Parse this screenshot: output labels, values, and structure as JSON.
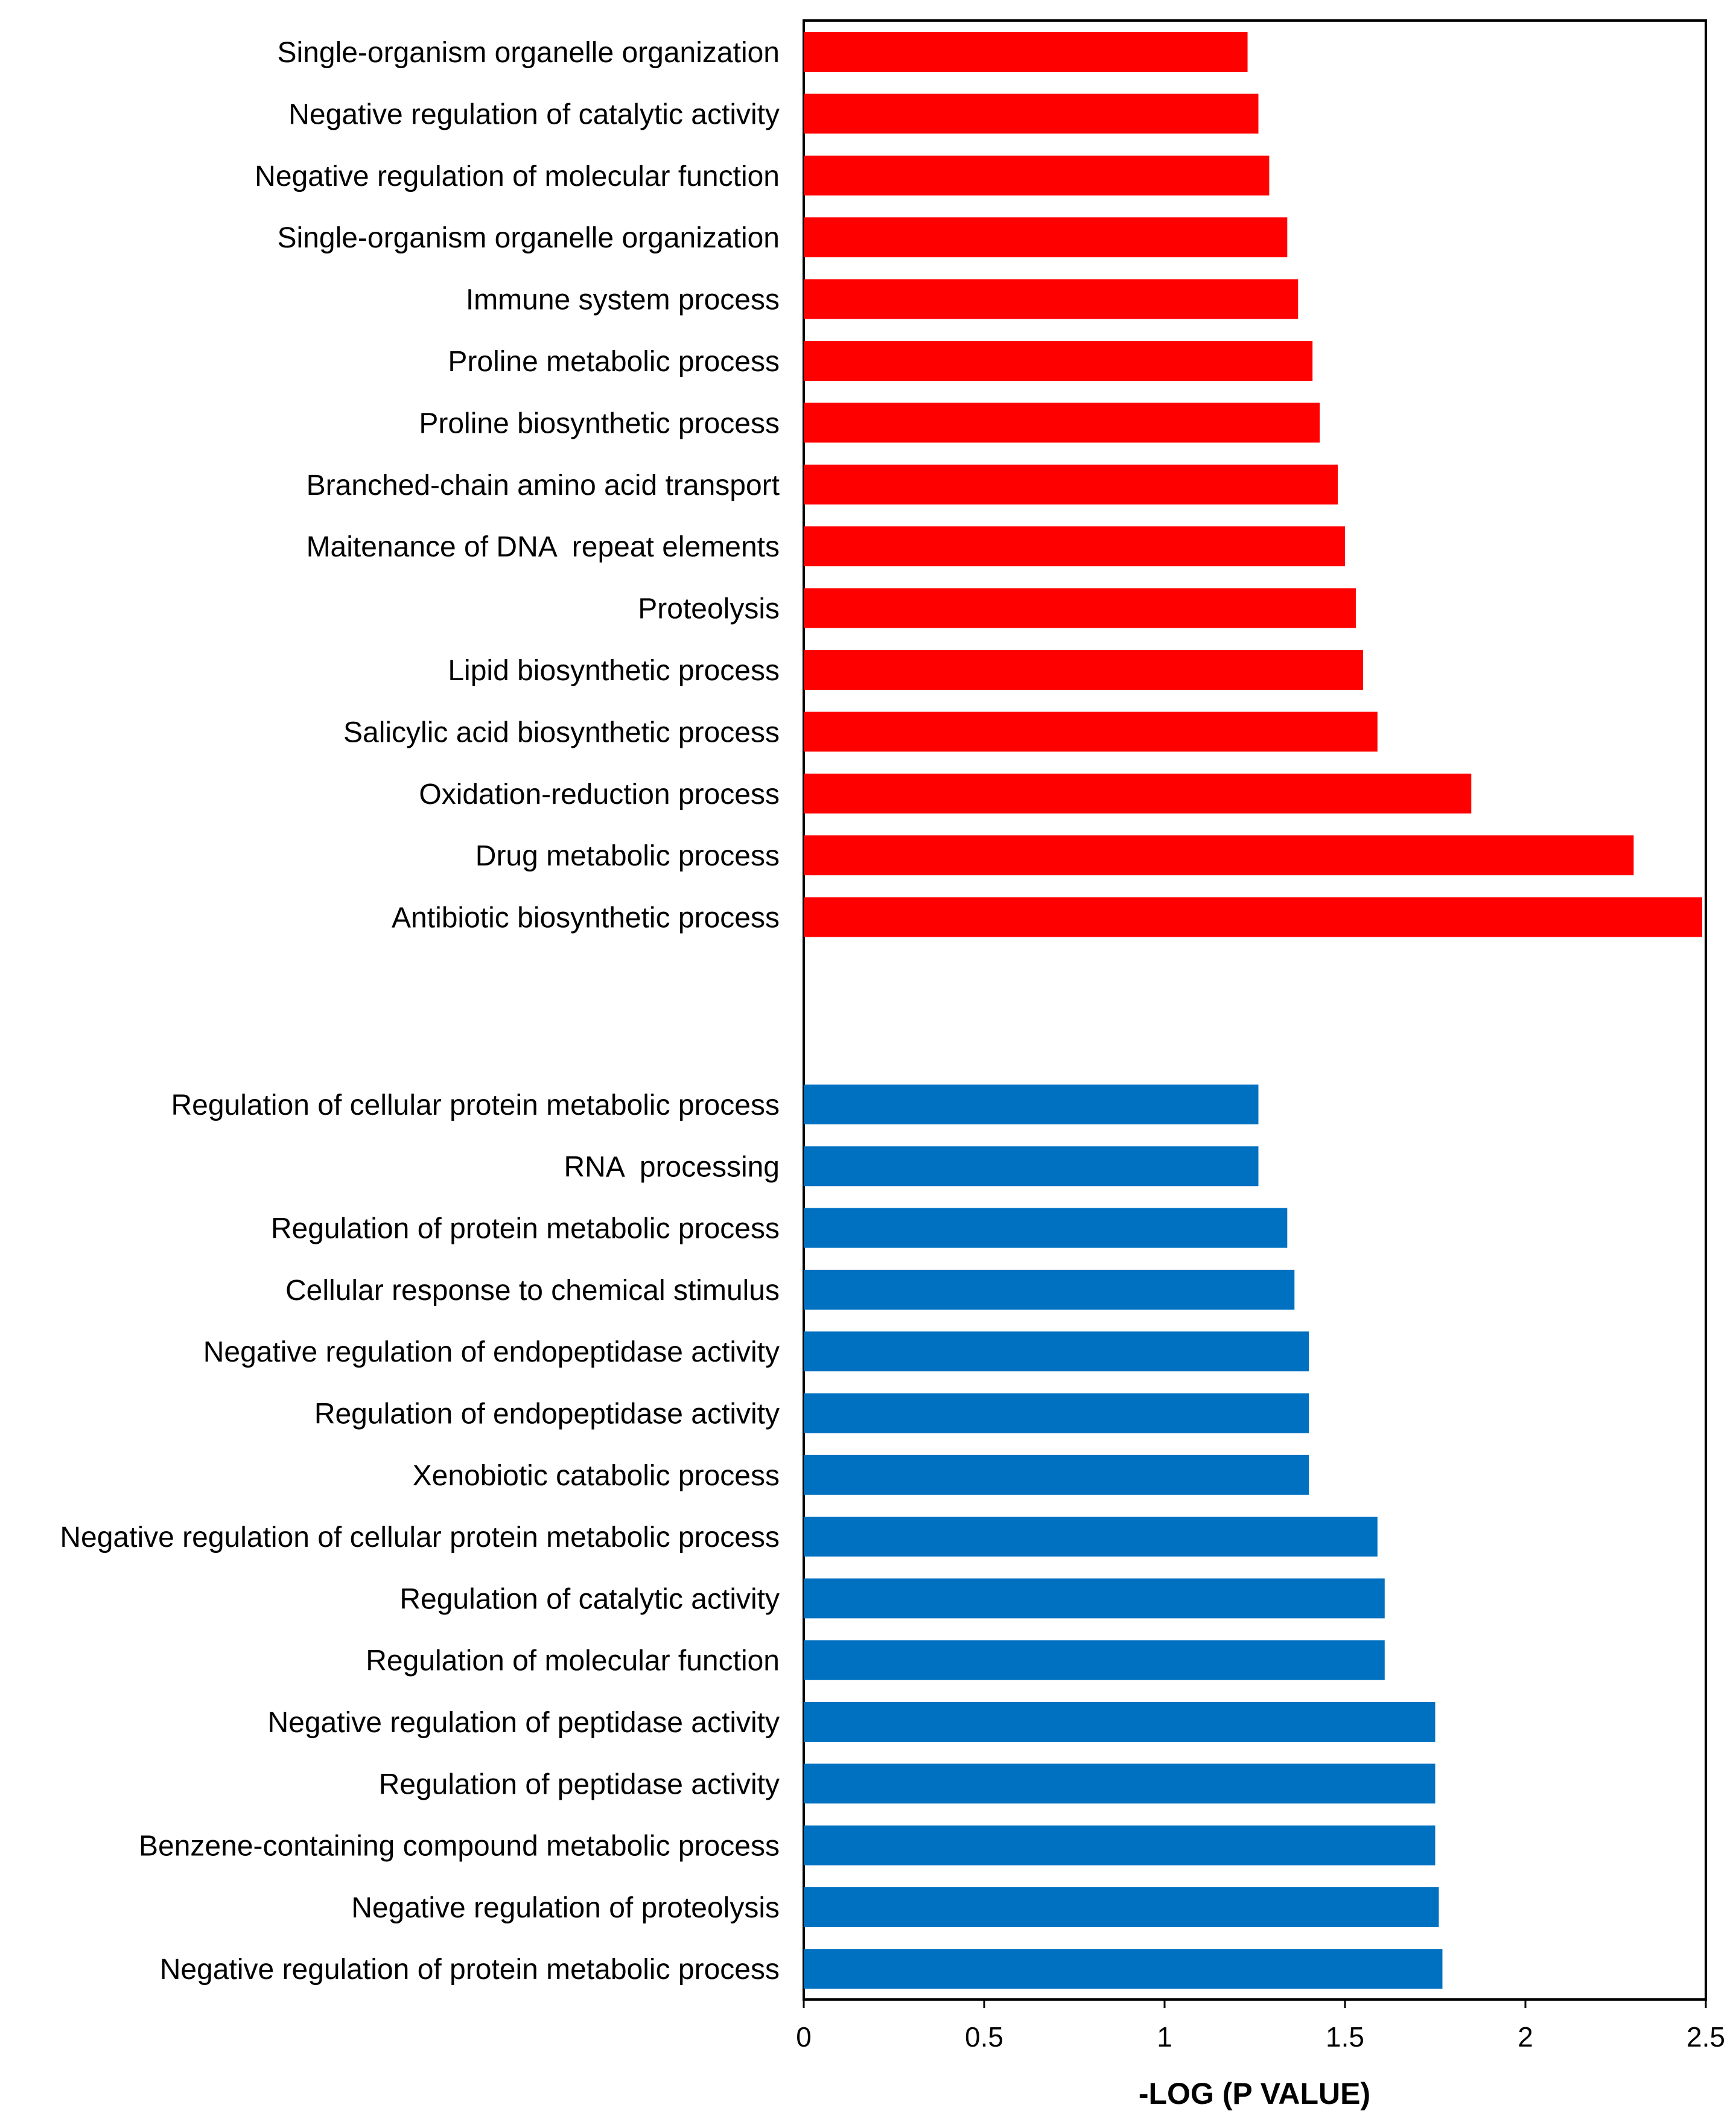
{
  "chart_data": {
    "type": "bar",
    "orientation": "horizontal",
    "xlabel": "-LOG (P VALUE)",
    "xlim": [
      0,
      2.5
    ],
    "xticks": [
      0,
      0.5,
      1,
      1.5,
      2,
      2.5
    ],
    "xtick_labels": [
      "0",
      "0.5",
      "1",
      "1.5",
      "2",
      "2.5"
    ],
    "grid": false,
    "series": [
      {
        "name": "red group",
        "color": "#ff0000",
        "categories": [
          "Single-organism organelle organization",
          "Negative regulation of catalytic activity",
          "Negative regulation of molecular function",
          "Single-organism organelle organization",
          "Immune system process",
          "Proline metabolic process",
          "Proline biosynthetic process",
          "Branched-chain amino acid transport",
          "Maitenance of DNA  repeat elements",
          "Proteolysis",
          "Lipid biosynthetic process",
          "Salicylic acid biosynthetic process",
          "Oxidation-reduction process",
          "Drug metabolic process",
          "Antibiotic biosynthetic process"
        ],
        "values": [
          1.23,
          1.26,
          1.29,
          1.34,
          1.37,
          1.41,
          1.43,
          1.48,
          1.5,
          1.53,
          1.55,
          1.59,
          1.85,
          2.3,
          2.49
        ]
      },
      {
        "name": "blue group",
        "color": "#0070c0",
        "categories": [
          "Regulation of cellular protein metabolic process",
          "RNA  processing",
          "Regulation of protein metabolic process",
          "Cellular response to chemical stimulus",
          "Negative regulation of endopeptidase activity",
          "Regulation of endopeptidase activity",
          "Xenobiotic catabolic process",
          "Negative regulation of cellular protein metabolic process",
          "Regulation of catalytic activity",
          "Regulation of molecular function",
          "Negative regulation of peptidase activity",
          "Regulation of peptidase activity",
          "Benzene-containing compound metabolic process",
          "Negative regulation of proteolysis",
          "Negative regulation of protein metabolic process"
        ],
        "values": [
          1.26,
          1.26,
          1.34,
          1.36,
          1.4,
          1.4,
          1.4,
          1.59,
          1.61,
          1.61,
          1.75,
          1.75,
          1.75,
          1.76,
          1.77
        ]
      }
    ]
  }
}
